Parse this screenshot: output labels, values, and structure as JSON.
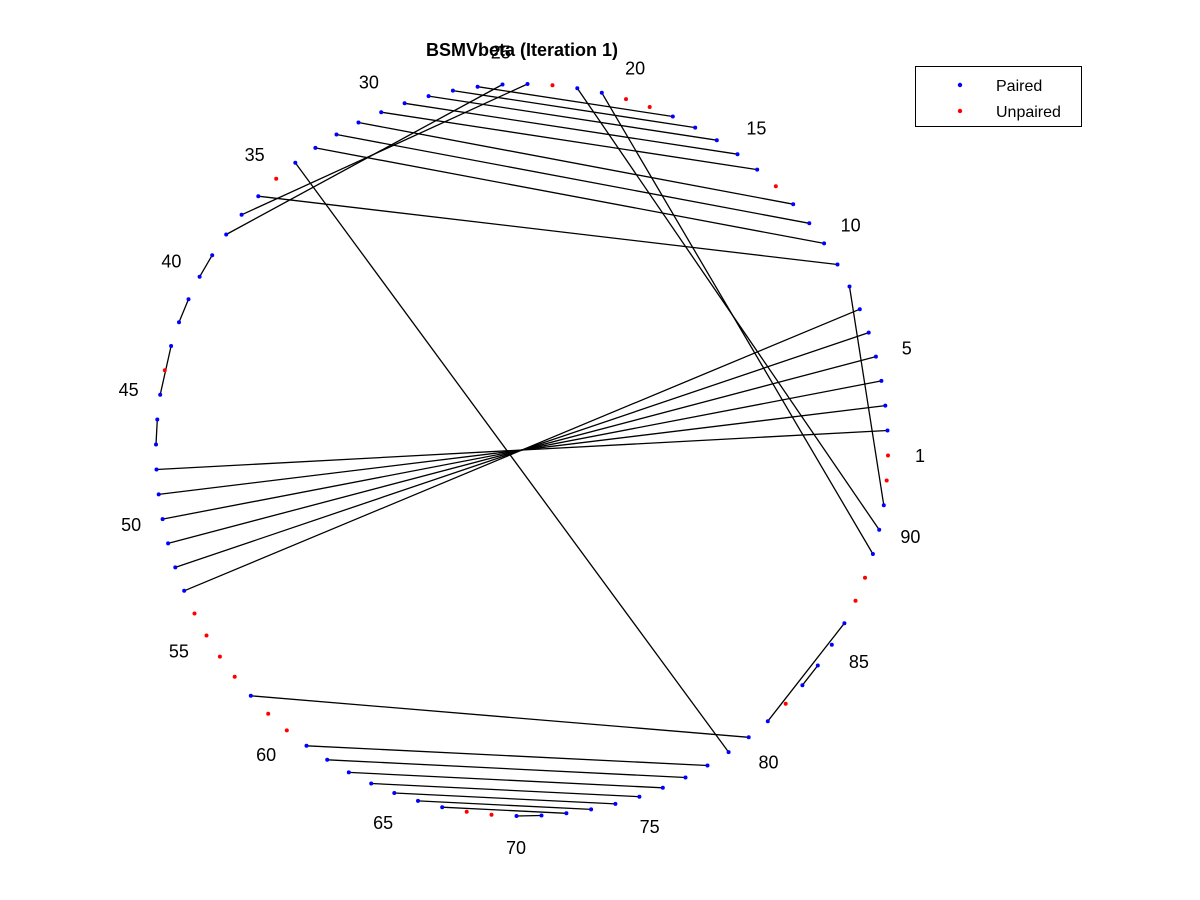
{
  "chart_data": {
    "type": "scatter",
    "title": "BSMVbeta (Iteration 1)",
    "n": 92,
    "index_labels": [
      "1",
      "5",
      "10",
      "15",
      "20",
      "25",
      "30",
      "35",
      "40",
      "45",
      "50",
      "55",
      "60",
      "65",
      "70",
      "75",
      "80",
      "85",
      "90"
    ],
    "label_indices": [
      1,
      5,
      10,
      15,
      20,
      25,
      30,
      35,
      40,
      45,
      50,
      55,
      60,
      65,
      70,
      75,
      80,
      85,
      90
    ],
    "series": [
      {
        "name": "Paired",
        "color": "#0000ff",
        "indices": [
          2,
          3,
          4,
          5,
          6,
          7,
          8,
          9,
          10,
          11,
          12,
          14,
          15,
          16,
          17,
          18,
          21,
          22,
          24,
          25,
          26,
          27,
          28,
          29,
          30,
          31,
          32,
          33,
          34,
          36,
          37,
          38,
          39,
          40,
          41,
          42,
          43,
          45,
          46,
          47,
          48,
          49,
          50,
          51,
          52,
          53,
          58,
          61,
          62,
          63,
          64,
          65,
          66,
          67,
          70,
          71,
          72,
          73,
          74,
          75,
          76,
          77,
          78,
          79,
          80,
          81,
          83,
          84,
          85,
          86,
          89,
          90,
          91
        ]
      },
      {
        "name": "Unpaired",
        "color": "#ff0000",
        "indices": [
          1,
          13,
          19,
          20,
          23,
          35,
          44,
          54,
          55,
          56,
          57,
          59,
          60,
          68,
          69,
          82,
          87,
          88,
          92
        ]
      }
    ],
    "pairs": [
      [
        2,
        48
      ],
      [
        3,
        49
      ],
      [
        4,
        50
      ],
      [
        5,
        51
      ],
      [
        6,
        52
      ],
      [
        7,
        53
      ],
      [
        8,
        91
      ],
      [
        9,
        36
      ],
      [
        10,
        33
      ],
      [
        11,
        32
      ],
      [
        12,
        31
      ],
      [
        14,
        30
      ],
      [
        15,
        29
      ],
      [
        16,
        28
      ],
      [
        17,
        27
      ],
      [
        18,
        26
      ],
      [
        21,
        89
      ],
      [
        22,
        90
      ],
      [
        24,
        37
      ],
      [
        25,
        38
      ],
      [
        34,
        79
      ],
      [
        39,
        40
      ],
      [
        41,
        42
      ],
      [
        43,
        45
      ],
      [
        46,
        47
      ],
      [
        58,
        80
      ],
      [
        61,
        78
      ],
      [
        62,
        77
      ],
      [
        63,
        76
      ],
      [
        64,
        75
      ],
      [
        65,
        74
      ],
      [
        66,
        73
      ],
      [
        67,
        72
      ],
      [
        70,
        71
      ],
      [
        81,
        86
      ],
      [
        83,
        84
      ],
      [
        85,
        85
      ]
    ],
    "legend": {
      "entries": [
        "Paired",
        "Unpaired"
      ],
      "position": "top-right"
    },
    "grid": false,
    "axes_visible": false
  }
}
